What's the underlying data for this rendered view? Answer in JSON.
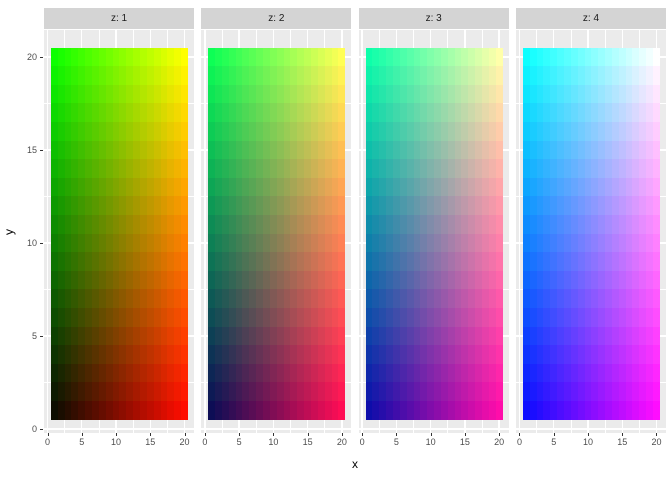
{
  "chart_data": {
    "type": "heatmap",
    "title": "",
    "xlabel": "x",
    "ylabel": "y",
    "legend": "none",
    "grid": true,
    "facet_variable": "z",
    "facets": [
      {
        "label": "z: 1",
        "z": 1
      },
      {
        "label": "z: 2",
        "z": 2
      },
      {
        "label": "z: 3",
        "z": 3
      },
      {
        "label": "z: 4",
        "z": 4
      }
    ],
    "x_ticks": [
      0,
      5,
      10,
      15,
      20
    ],
    "y_ticks": [
      0,
      5,
      10,
      15,
      20
    ],
    "x_minor_ticks": [
      2.5,
      7.5,
      12.5,
      17.5
    ],
    "y_minor_ticks": [
      2.5,
      7.5,
      12.5,
      17.5
    ],
    "xlim": [
      -0.6,
      21.6
    ],
    "ylim": [
      -0.6,
      21.6
    ],
    "tiles": {
      "x_min": 1,
      "x_max": 20,
      "x_count": 20,
      "y_min": 1,
      "y_max": 20,
      "y_count": 20,
      "extent_x": [
        0.5,
        20.5
      ],
      "extent_y": [
        0.5,
        20.5
      ]
    },
    "color_rule": {
      "formula": "fill = rgb(x/20, y/20, (z-1)/3)",
      "red": "x/20",
      "green": "y/20",
      "blue": "(z-1)/3"
    },
    "corner_colors_by_facet": [
      {
        "z": 1,
        "bottom_left": "#0D0D00",
        "bottom_right": "#FF0D00",
        "top_left": "#0DFF00",
        "top_right": "#FFFF00"
      },
      {
        "z": 2,
        "bottom_left": "#0D0D55",
        "bottom_right": "#FF0D55",
        "top_left": "#0DFF55",
        "top_right": "#FFFF55"
      },
      {
        "z": 3,
        "bottom_left": "#0D0DAA",
        "bottom_right": "#FF0DAA",
        "top_left": "#0DFFAA",
        "top_right": "#FFFFAA"
      },
      {
        "z": 4,
        "bottom_left": "#0D0DFF",
        "bottom_right": "#FF0DFF",
        "top_left": "#0DFFFF",
        "top_right": "#FFFFFF"
      }
    ],
    "colors": {
      "figure_bg": "#FFFFFF",
      "panel_bg": "#EBEBEB",
      "gridline": "#FFFFFF",
      "strip_bg": "#D4D4D4",
      "strip_text": "#1A1A1A",
      "axis_text": "#4D4D4D",
      "axis_title": "#000000",
      "tick_mark": "#333333"
    }
  }
}
